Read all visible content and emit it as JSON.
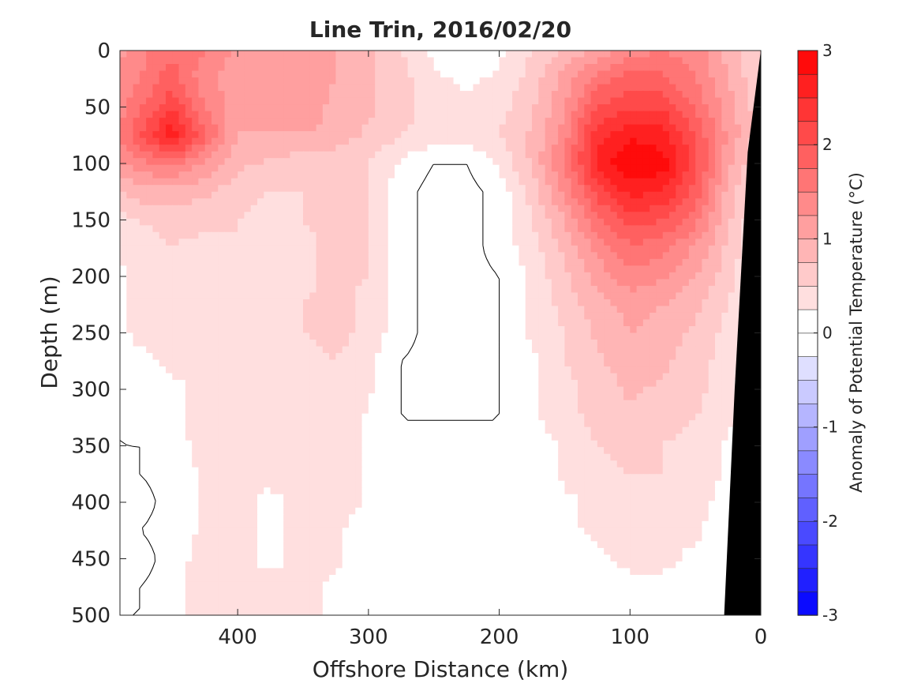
{
  "chart_data": {
    "type": "heatmap",
    "title": "Line Trin, 2016/02/20",
    "xlabel": "Offshore Distance (km)",
    "ylabel": "Depth (m)",
    "xlim": [
      490,
      0
    ],
    "ylim": [
      0,
      500
    ],
    "x_reversed": true,
    "y_reversed": true,
    "x_ticks": [
      400,
      300,
      200,
      100,
      0
    ],
    "y_ticks": [
      0,
      50,
      100,
      150,
      200,
      250,
      300,
      350,
      400,
      450,
      500
    ],
    "colorbar": {
      "label": "Anomaly of Potential Temperature (°C)",
      "range": [
        -3,
        3
      ],
      "levels": [
        -3,
        -2.75,
        -2.5,
        -2.25,
        -2,
        -1.75,
        -1.5,
        -1.25,
        -1,
        -0.75,
        -0.5,
        -0.25,
        0,
        0.25,
        0.5,
        0.75,
        1,
        1.25,
        1.5,
        1.75,
        2,
        2.25,
        2.5,
        2.75,
        3
      ],
      "tick_labels": [
        "3",
        "2",
        "1",
        "0",
        "-1",
        "-2",
        "-3"
      ],
      "tick_values": [
        3,
        2,
        1,
        0,
        -1,
        -2,
        -3
      ],
      "colors": {
        "negative": "#0000ff",
        "zero": "#ffffff",
        "positive": "#ff0000"
      }
    },
    "x": [
      0,
      25,
      50,
      75,
      100,
      125,
      150,
      175,
      200,
      225,
      250,
      275,
      300,
      325,
      350,
      375,
      400,
      425,
      450,
      475,
      490
    ],
    "y": [
      0,
      25,
      50,
      75,
      100,
      125,
      150,
      175,
      200,
      225,
      250,
      275,
      300,
      325,
      350,
      375,
      400,
      425,
      450,
      475,
      500
    ],
    "z": [
      [
        0.5,
        0.9,
        1.4,
        1.5,
        1.4,
        1.1,
        0.8,
        0.5,
        0.2,
        0.0,
        0.2,
        0.5,
        0.8,
        1.0,
        1.1,
        1.0,
        1.2,
        1.5,
        1.7,
        1.4,
        1.2
      ],
      [
        0.5,
        1.0,
        1.5,
        1.8,
        1.9,
        1.6,
        1.1,
        0.6,
        0.3,
        0.2,
        0.3,
        0.6,
        0.8,
        1.0,
        1.2,
        1.0,
        1.1,
        1.3,
        1.9,
        1.5,
        1.3
      ],
      [
        0.6,
        1.1,
        1.7,
        2.2,
        2.2,
        2.0,
        1.2,
        0.7,
        0.4,
        0.3,
        0.4,
        0.6,
        0.8,
        0.9,
        1.2,
        1.1,
        1.1,
        1.5,
        2.2,
        1.7,
        1.4
      ],
      [
        0.6,
        1.2,
        2.0,
        2.6,
        2.7,
        2.4,
        1.4,
        0.8,
        0.5,
        0.4,
        0.4,
        0.5,
        0.7,
        0.9,
        1.0,
        1.0,
        1.0,
        1.8,
        2.7,
        2.0,
        1.5
      ],
      [
        0.4,
        1.1,
        2.1,
        2.9,
        3.0,
        2.6,
        1.5,
        0.8,
        0.3,
        0.0,
        0.0,
        0.2,
        0.5,
        0.6,
        0.6,
        0.7,
        0.8,
        1.2,
        1.6,
        1.4,
        1.2
      ],
      [
        0.3,
        0.9,
        1.9,
        2.5,
        2.6,
        2.1,
        1.3,
        0.6,
        0.1,
        -0.1,
        -0.1,
        0.1,
        0.5,
        0.6,
        0.5,
        0.5,
        0.6,
        0.8,
        0.9,
        0.9,
        0.7
      ],
      [
        0.2,
        0.8,
        1.6,
        2.0,
        2.1,
        1.7,
        1.0,
        0.5,
        0.1,
        -0.1,
        -0.1,
        0.1,
        0.5,
        0.6,
        0.5,
        0.4,
        0.5,
        0.6,
        0.6,
        0.5,
        0.4
      ],
      [
        0.2,
        0.7,
        1.2,
        1.6,
        1.7,
        1.3,
        0.8,
        0.4,
        0.1,
        -0.1,
        -0.1,
        0.1,
        0.5,
        0.6,
        0.4,
        0.4,
        0.5,
        0.4,
        0.5,
        0.4,
        0.3
      ],
      [
        0.1,
        0.6,
        1.0,
        1.3,
        1.4,
        1.1,
        0.7,
        0.3,
        0.0,
        -0.1,
        -0.1,
        0.1,
        0.5,
        0.6,
        0.4,
        0.3,
        0.4,
        0.3,
        0.4,
        0.3,
        0.2
      ],
      [
        0.1,
        0.5,
        0.8,
        1.0,
        1.1,
        0.9,
        0.6,
        0.3,
        0.0,
        -0.1,
        -0.1,
        0.1,
        0.4,
        0.6,
        0.5,
        0.3,
        0.4,
        0.4,
        0.3,
        0.3,
        0.2
      ],
      [
        0.1,
        0.4,
        0.7,
        0.9,
        1.0,
        0.8,
        0.5,
        0.3,
        0.0,
        -0.1,
        -0.1,
        0.1,
        0.4,
        0.6,
        0.5,
        0.3,
        0.3,
        0.3,
        0.3,
        0.3,
        0.2
      ],
      [
        0.1,
        0.4,
        0.6,
        0.8,
        0.9,
        0.7,
        0.5,
        0.2,
        0.0,
        -0.1,
        -0.1,
        0.0,
        0.3,
        0.5,
        0.4,
        0.3,
        0.3,
        0.3,
        0.3,
        0.2,
        0.2
      ],
      [
        0.0,
        0.3,
        0.6,
        0.7,
        0.8,
        0.6,
        0.4,
        0.2,
        0.0,
        -0.1,
        -0.1,
        0.0,
        0.3,
        0.5,
        0.4,
        0.3,
        0.3,
        0.3,
        0.2,
        0.1,
        0.1
      ],
      [
        0.0,
        0.3,
        0.5,
        0.6,
        0.7,
        0.6,
        0.4,
        0.2,
        0.0,
        0.0,
        0.0,
        0.0,
        0.2,
        0.5,
        0.4,
        0.3,
        0.3,
        0.3,
        0.2,
        0.1,
        0.0
      ],
      [
        0.0,
        0.2,
        0.4,
        0.5,
        0.6,
        0.5,
        0.3,
        0.1,
        0.0,
        0.0,
        0.0,
        0.0,
        0.2,
        0.5,
        0.4,
        0.3,
        0.3,
        0.3,
        0.2,
        0.0,
        0.0
      ],
      [
        0.0,
        0.2,
        0.4,
        0.5,
        0.5,
        0.4,
        0.3,
        0.1,
        0.0,
        0.0,
        0.0,
        0.0,
        0.2,
        0.5,
        0.4,
        0.3,
        0.3,
        0.3,
        0.1,
        0.0,
        -0.1
      ],
      [
        0.0,
        0.2,
        0.3,
        0.4,
        0.4,
        0.3,
        0.2,
        0.1,
        0.0,
        0.0,
        0.0,
        0.0,
        0.2,
        0.4,
        0.3,
        0.2,
        0.3,
        0.3,
        0.1,
        -0.1,
        -0.1
      ],
      [
        0.0,
        0.1,
        0.3,
        0.3,
        0.4,
        0.3,
        0.2,
        0.1,
        0.0,
        0.0,
        0.0,
        0.0,
        0.1,
        0.3,
        0.3,
        0.2,
        0.3,
        0.3,
        0.1,
        0.0,
        -0.1
      ],
      [
        0.0,
        0.1,
        0.2,
        0.3,
        0.3,
        0.2,
        0.1,
        0.1,
        0.0,
        0.0,
        0.0,
        0.0,
        0.1,
        0.3,
        0.3,
        0.2,
        0.3,
        0.4,
        0.1,
        -0.1,
        -0.2
      ],
      [
        0.0,
        0.1,
        0.2,
        0.2,
        0.2,
        0.2,
        0.1,
        0.0,
        0.0,
        0.0,
        0.0,
        0.0,
        0.1,
        0.2,
        0.3,
        0.3,
        0.3,
        0.4,
        0.1,
        0.0,
        -0.1
      ],
      [
        0.0,
        0.1,
        0.1,
        0.2,
        0.2,
        0.1,
        0.1,
        0.0,
        0.0,
        0.0,
        0.0,
        0.0,
        0.1,
        0.2,
        0.3,
        0.3,
        0.3,
        0.4,
        0.1,
        0.0,
        0.0
      ]
    ],
    "bathymetry": {
      "label": "seafloor",
      "points": [
        [
          0,
          0
        ],
        [
          10,
          90
        ],
        [
          20,
          300
        ],
        [
          28,
          500
        ]
      ]
    },
    "grid": false
  }
}
